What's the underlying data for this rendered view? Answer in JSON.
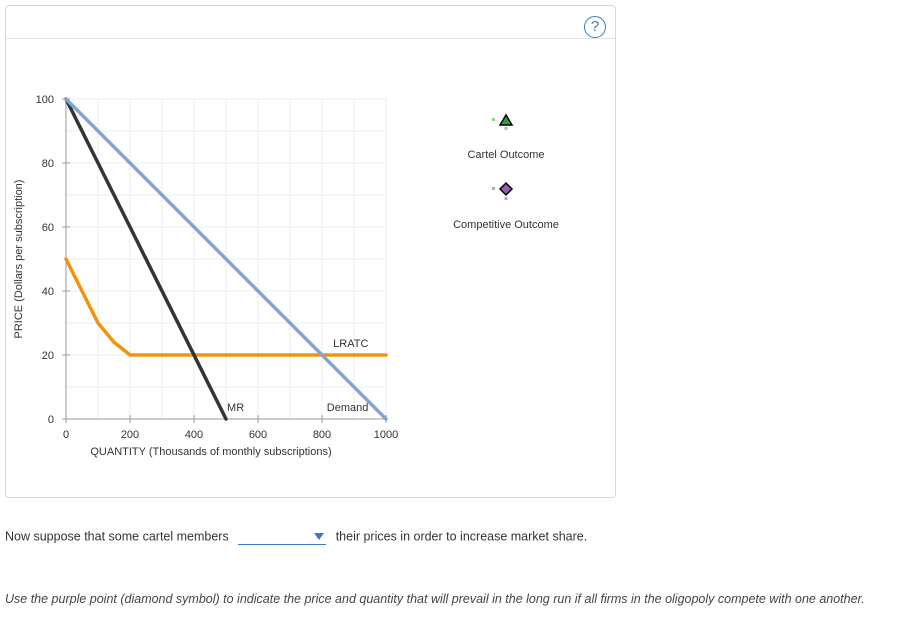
{
  "help": {
    "label": "?"
  },
  "chart_data": {
    "type": "line",
    "xlabel": "QUANTITY (Thousands of monthly subscriptions)",
    "ylabel": "PRICE (Dollars per subscription)",
    "xlim": [
      0,
      1000
    ],
    "ylim": [
      0,
      100
    ],
    "x_ticks": [
      0,
      200,
      400,
      600,
      800,
      1000
    ],
    "y_ticks": [
      0,
      20,
      40,
      60,
      80,
      100
    ],
    "grid": true,
    "series": [
      {
        "name": "Demand",
        "color": "#7ea6d9",
        "x": [
          0,
          1000
        ],
        "y": [
          100,
          0
        ]
      },
      {
        "name": "MR",
        "color": "#333333",
        "x": [
          0,
          500
        ],
        "y": [
          100,
          0
        ]
      },
      {
        "name": "LRATC",
        "color": "#f0940e",
        "x": [
          0,
          50,
          100,
          150,
          200,
          1000
        ],
        "y": [
          50,
          40,
          30,
          24,
          20,
          20
        ]
      }
    ],
    "legend": [
      {
        "label": "Cartel Outcome",
        "symbol": "triangle",
        "color": "#2e9e3e"
      },
      {
        "label": "Competitive Outcome",
        "symbol": "diamond",
        "color": "#9b59b6"
      }
    ],
    "legend_position": "right"
  },
  "sentence": {
    "before": "Now suppose that some cartel members",
    "dropdown_value": "",
    "after": "their prices in order to increase market share."
  },
  "instruction": "Use the purple point (diamond symbol) to indicate the price and quantity that will prevail in the long run if all firms in the oligopoly compete with one another."
}
